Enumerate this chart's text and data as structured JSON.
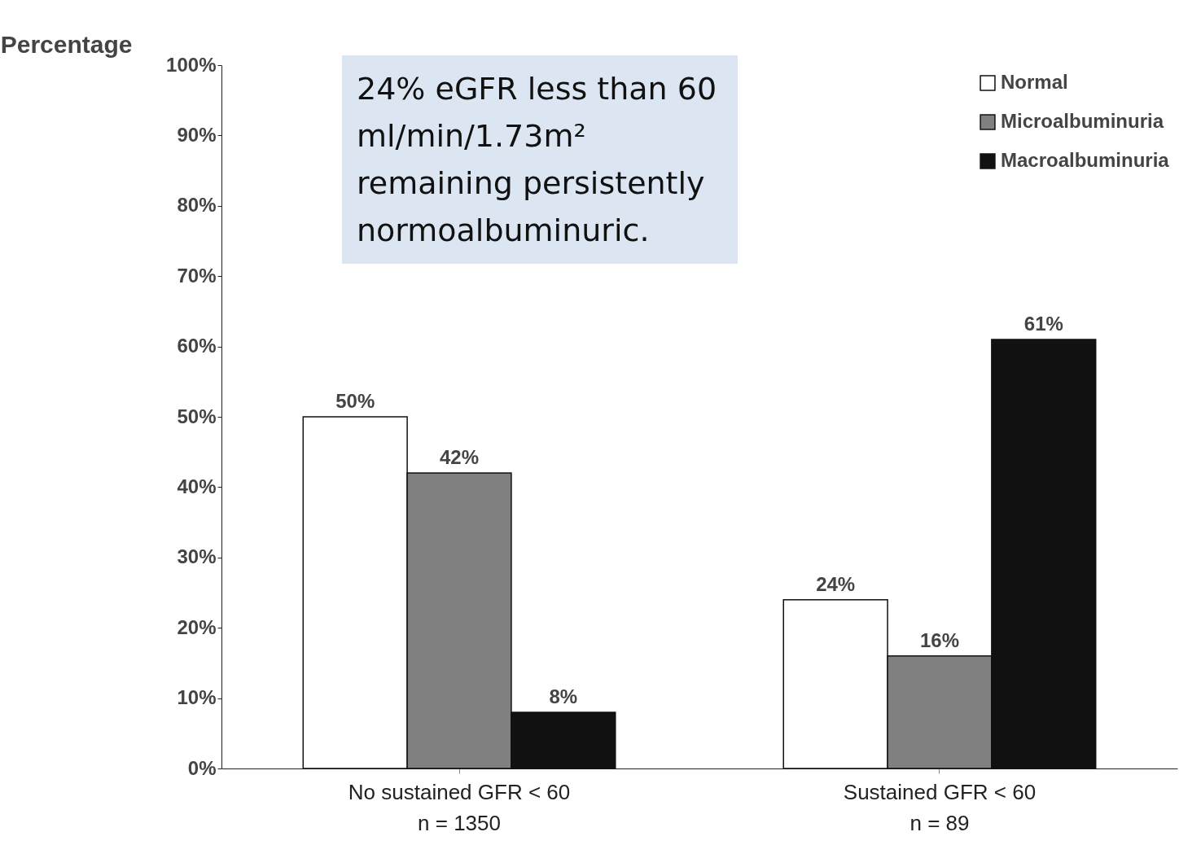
{
  "chart_data": {
    "type": "bar",
    "ylabel": "Percentage",
    "categories": [
      "No sustained GFR < 60\nn = 1350",
      "Sustained GFR < 60\nn = 89"
    ],
    "series": [
      {
        "name": "Normal",
        "color": "#ffffff",
        "values": [
          50,
          24
        ]
      },
      {
        "name": "Microalbuminuria",
        "color": "#808080",
        "values": [
          42,
          16
        ]
      },
      {
        "name": "Macroalbuminuria",
        "color": "#111111",
        "values": [
          8,
          61
        ]
      }
    ],
    "ylim": [
      0,
      100
    ],
    "yticks": [
      {
        "value": 0,
        "label": "0%"
      },
      {
        "value": 10,
        "label": "10%"
      },
      {
        "value": 20,
        "label": "20%"
      },
      {
        "value": 30,
        "label": "30%"
      },
      {
        "value": 40,
        "label": "40%"
      },
      {
        "value": 50,
        "label": "50%"
      },
      {
        "value": 60,
        "label": "60%"
      },
      {
        "value": 70,
        "label": "70%"
      },
      {
        "value": 80,
        "label": "80%"
      },
      {
        "value": 90,
        "label": "90%"
      },
      {
        "value": 100,
        "label": "100%"
      }
    ],
    "value_labels": [
      [
        "50%",
        "24%"
      ],
      [
        "42%",
        "16%"
      ],
      [
        "8%",
        "61%"
      ]
    ],
    "grid": false,
    "legend": "top right",
    "annotations": [
      "24% eGFR less than 60 ml/min/1.73m² remaining persistently normoalbuminuric."
    ]
  }
}
